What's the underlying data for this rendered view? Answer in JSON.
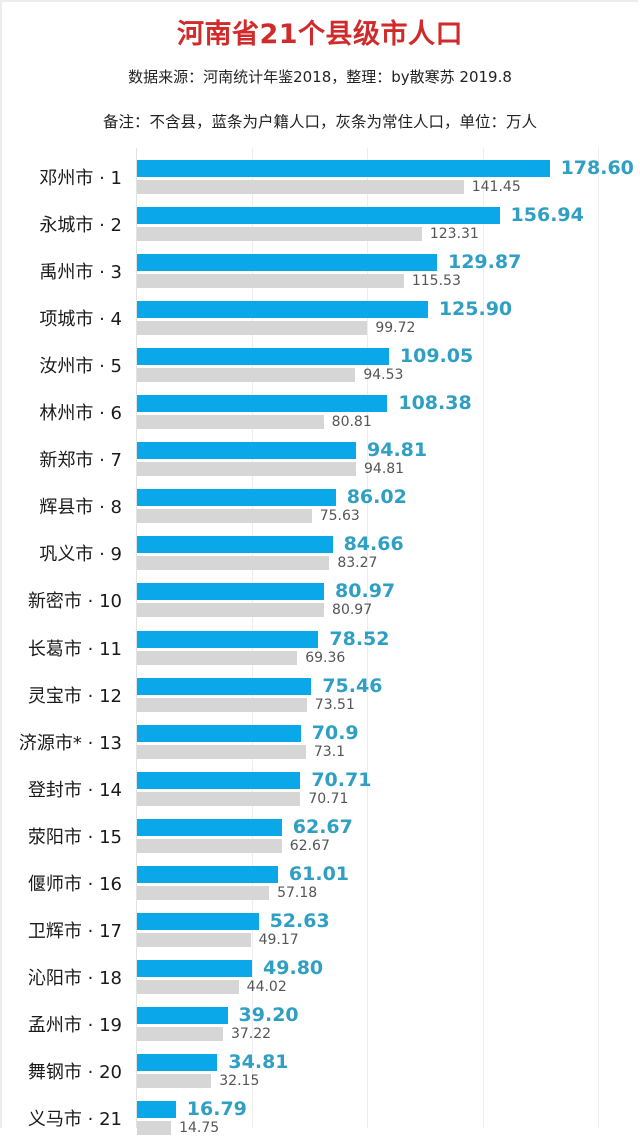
{
  "header": {
    "title": "河南省21个县级市人口",
    "source": "数据来源：河南统计年鉴2018，整理：by散寒苏  2019.8",
    "note": "备注：不含县，蓝条为户籍人口，灰条为常住人口，单位：万人"
  },
  "colors": {
    "title": "#d12a2a",
    "registered_bar": "#0aa8e8",
    "resident_bar": "#d6d6d6",
    "registered_label": "#2f9fc4",
    "resident_label": "#555555"
  },
  "chart_data": {
    "type": "bar",
    "orientation": "horizontal",
    "title": "河南省21个县级市人口",
    "subtitle": "数据来源：河南统计年鉴2018，整理：by散寒苏  2019.8",
    "annotation": "备注：不含县，蓝条为户籍人口，灰条为常住人口，单位：万人",
    "xlabel": "",
    "ylabel": "",
    "xlim": [
      0,
      200
    ],
    "grid": true,
    "gridlines": [
      0,
      50,
      100,
      150,
      200
    ],
    "legend": "none (described in annotation)",
    "unit": "万人",
    "categories": [
      "邓州市 · 1",
      "永城市 · 2",
      "禹州市 · 3",
      "项城市 · 4",
      "汝州市 · 5",
      "林州市 · 6",
      "新郑市 · 7",
      "辉县市 · 8",
      "巩义市 · 9",
      "新密市 · 10",
      "长葛市 · 11",
      "灵宝市 · 12",
      "济源市* · 13",
      "登封市 · 14",
      "荥阳市 · 15",
      "偃师市 · 16",
      "卫辉市 · 17",
      "沁阳市 · 18",
      "孟州市 · 19",
      "舞钢市 · 20",
      "义马市 · 21"
    ],
    "series": [
      {
        "name": "户籍人口",
        "color": "#0aa8e8",
        "values": [
          178.6,
          156.94,
          129.87,
          125.9,
          109.05,
          108.38,
          94.81,
          86.02,
          84.66,
          80.97,
          78.52,
          75.46,
          70.9,
          70.71,
          62.67,
          61.01,
          52.63,
          49.8,
          39.2,
          34.81,
          16.79
        ],
        "labels": [
          "178.60",
          "156.94",
          "129.87",
          "125.90",
          "109.05",
          "108.38",
          "94.81",
          "86.02",
          "84.66",
          "80.97",
          "78.52",
          "75.46",
          "70.9",
          "70.71",
          "62.67",
          "61.01",
          "52.63",
          "49.80",
          "39.20",
          "34.81",
          "16.79"
        ]
      },
      {
        "name": "常住人口",
        "color": "#d6d6d6",
        "values": [
          141.45,
          123.31,
          115.53,
          99.72,
          94.53,
          80.81,
          94.81,
          75.63,
          83.27,
          80.97,
          69.36,
          73.51,
          73.1,
          70.71,
          62.67,
          57.18,
          49.17,
          44.02,
          37.22,
          32.15,
          14.75
        ],
        "labels": [
          "141.45",
          "123.31",
          "115.53",
          "99.72",
          "94.53",
          "80.81",
          "94.81",
          "75.63",
          "83.27",
          "80.97",
          "69.36",
          "73.51",
          "73.1",
          "70.71",
          "62.67",
          "57.18",
          "49.17",
          "44.02",
          "37.22",
          "32.15",
          "14.75"
        ]
      }
    ]
  }
}
